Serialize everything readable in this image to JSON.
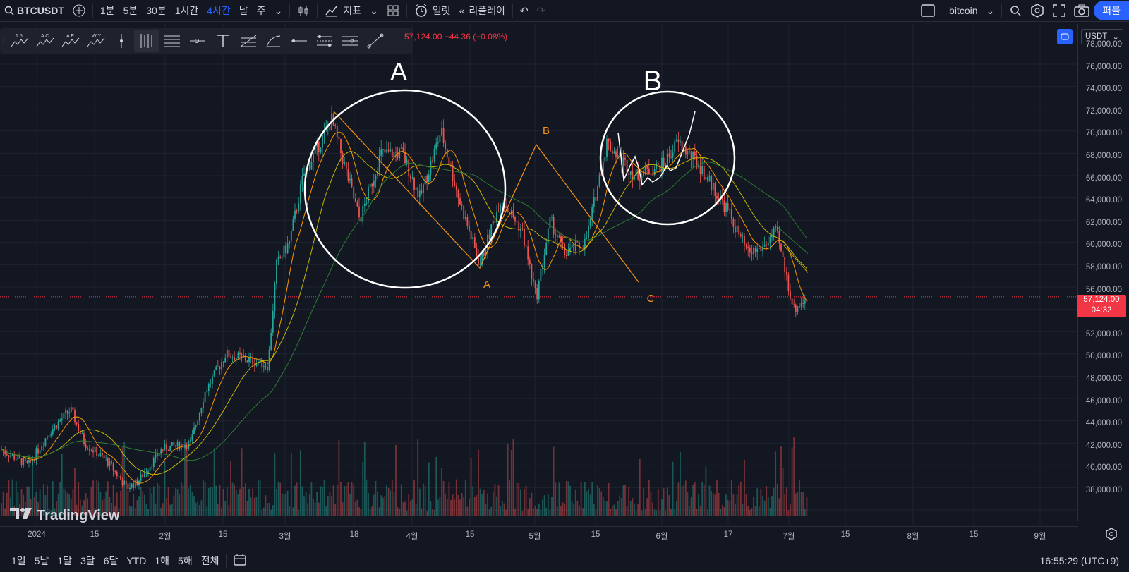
{
  "header": {
    "symbol": "BTCUSDT",
    "intervals": [
      "1분",
      "5분",
      "30분",
      "1시간",
      "4시간",
      "날",
      "주"
    ],
    "active_interval": "4시간",
    "indicators_label": "지표",
    "alert_label": "얼럿",
    "replay_label": "리플레이",
    "layout_name": "bitcoin",
    "publish_label": "퍼블"
  },
  "legend": {
    "text": "57,124.00  −44.36 (−0.08%)"
  },
  "price_axis": {
    "currency": "USDT",
    "ticks": [
      "78,000.00",
      "76,000.00",
      "74,000.00",
      "72,000.00",
      "70,000.00",
      "68,000.00",
      "66,000.00",
      "64,000.00",
      "62,000.00",
      "60,000.00",
      "58,000.00",
      "56,000.00",
      "54,000.00",
      "52,000.00",
      "50,000.00",
      "48,000.00",
      "46,000.00",
      "44,000.00",
      "42,000.00",
      "40,000.00",
      "38,000.00"
    ],
    "last_price": "57,124.00",
    "countdown": "04:32"
  },
  "time_axis": {
    "ticks": [
      "2024",
      "15",
      "2월",
      "15",
      "3월",
      "18",
      "4월",
      "15",
      "5월",
      "15",
      "6월",
      "17",
      "7월",
      "15",
      "8월",
      "15",
      "9월"
    ]
  },
  "annotations": {
    "circle_a_label": "A",
    "circle_b_label": "B",
    "wave_a": "A",
    "wave_b": "B",
    "wave_c": "C"
  },
  "watermark": "TradingView",
  "bottom": {
    "ranges": [
      "1일",
      "5날",
      "1달",
      "3달",
      "6달",
      "YTD",
      "1해",
      "5해",
      "전체"
    ],
    "clock": "16:55:29 (UTC+9)"
  },
  "drawing_tools": [
    "wave-1-5-icon",
    "wave-abc-icon",
    "wave-ae-icon",
    "wave-wy-icon",
    "vertical-line-icon",
    "parallel-lines-icon",
    "horizontal-lines-icon",
    "horizontal-ray-icon",
    "text-icon",
    "fib-icon",
    "arc-icon",
    "line-icon",
    "range-icon",
    "levels-icon",
    "trend-line-icon"
  ],
  "colors": {
    "up": "#26a69a",
    "down": "#ef5350",
    "price_line": "#f23645",
    "accent": "#2962ff",
    "abc_line": "#f7931a"
  }
}
